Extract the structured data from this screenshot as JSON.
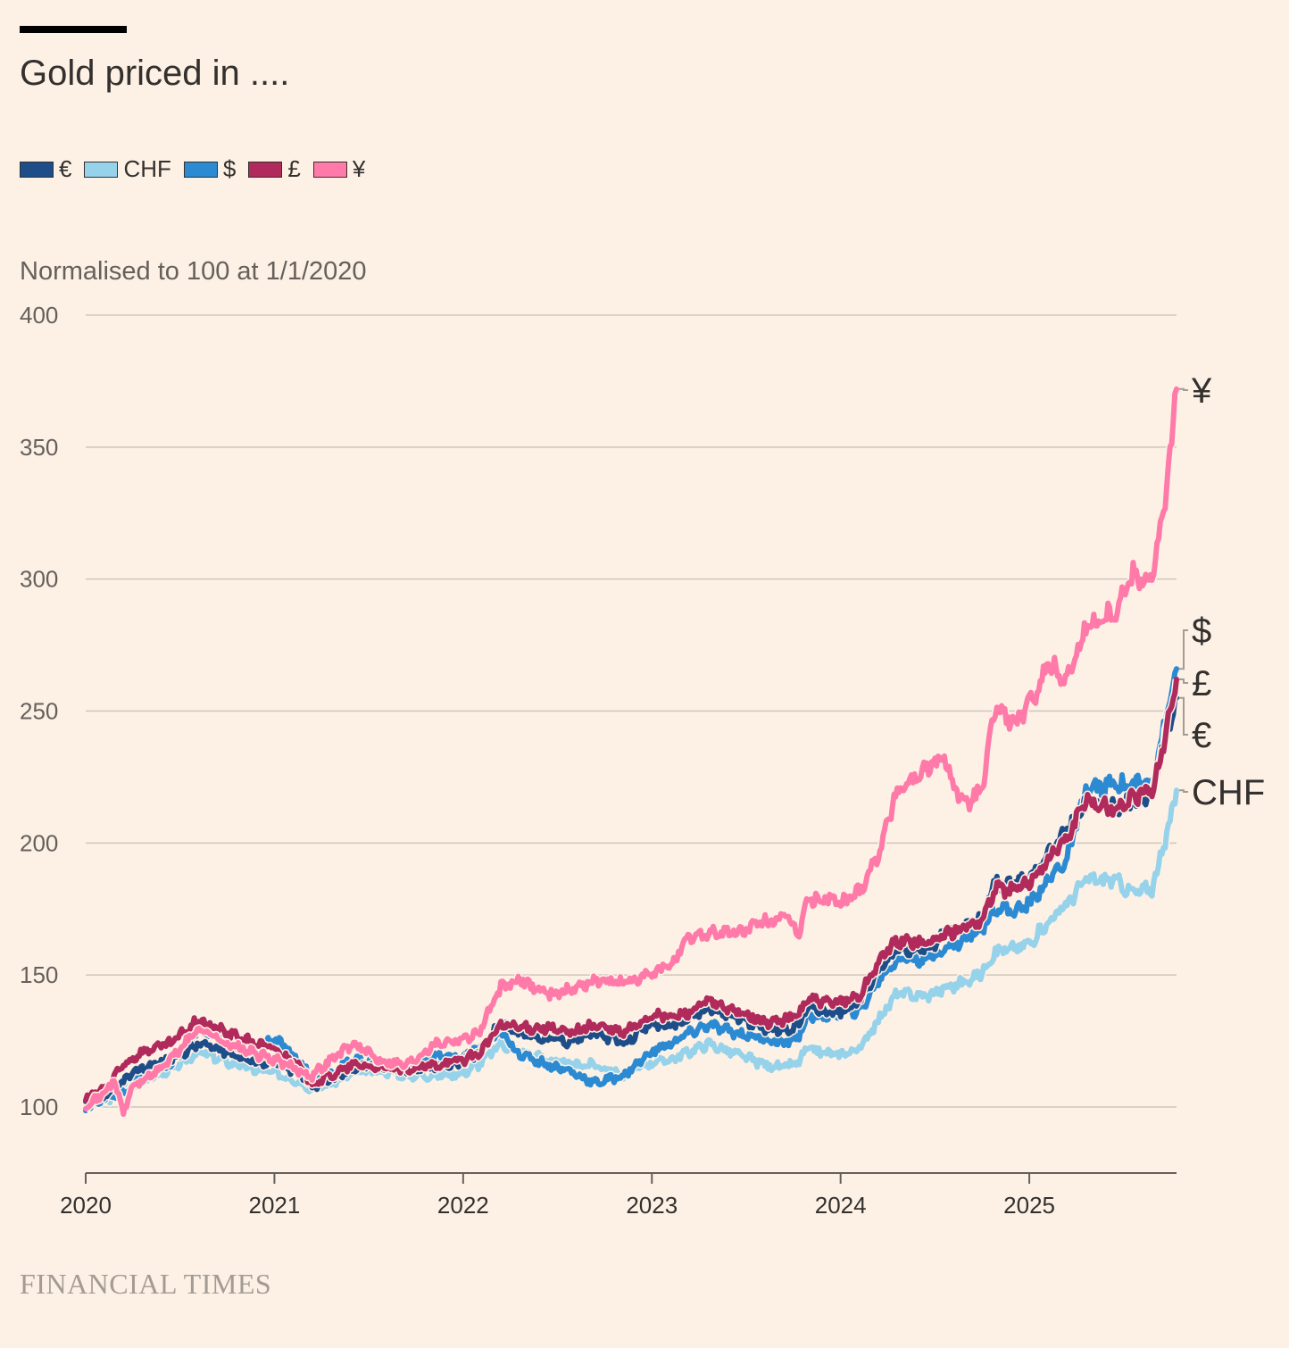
{
  "title": "Gold priced in ....",
  "subtitle": "Normalised to 100 at 1/1/2020",
  "source": "FINANCIAL TIMES",
  "legend": [
    {
      "label": "€",
      "color": "#1d4e89"
    },
    {
      "label": "CHF",
      "color": "#96d2ea"
    },
    {
      "label": "$",
      "color": "#2b8ad2"
    },
    {
      "label": "£",
      "color": "#b02a5c"
    },
    {
      "label": "¥",
      "color": "#ff7aa8"
    }
  ],
  "chart_data": {
    "type": "line",
    "ylabel": "Normalised to 100 at 1/1/2020",
    "ylim": [
      75,
      400
    ],
    "yticks": [
      100,
      150,
      200,
      250,
      300,
      350,
      400
    ],
    "xlim": [
      2020.0,
      2025.78
    ],
    "xticks": [
      2020,
      2021,
      2022,
      2023,
      2024,
      2025
    ],
    "grid": true,
    "series": [
      {
        "name": "€",
        "color": "#1d4e89",
        "end_label": "€",
        "points": [
          [
            2020.0,
            101
          ],
          [
            2020.12,
            105
          ],
          [
            2020.2,
            110
          ],
          [
            2020.3,
            115
          ],
          [
            2020.45,
            118
          ],
          [
            2020.6,
            124
          ],
          [
            2020.75,
            121
          ],
          [
            2020.9,
            117
          ],
          [
            2021.0,
            117
          ],
          [
            2021.12,
            113
          ],
          [
            2021.2,
            108
          ],
          [
            2021.3,
            110
          ],
          [
            2021.42,
            115
          ],
          [
            2021.55,
            116
          ],
          [
            2021.7,
            114
          ],
          [
            2021.85,
            115
          ],
          [
            2022.0,
            117
          ],
          [
            2022.08,
            120
          ],
          [
            2022.2,
            132
          ],
          [
            2022.3,
            128
          ],
          [
            2022.45,
            126
          ],
          [
            2022.55,
            125
          ],
          [
            2022.7,
            128
          ],
          [
            2022.85,
            124
          ],
          [
            2023.0,
            132
          ],
          [
            2023.1,
            130
          ],
          [
            2023.2,
            134
          ],
          [
            2023.3,
            137
          ],
          [
            2023.45,
            134
          ],
          [
            2023.6,
            130
          ],
          [
            2023.7,
            129
          ],
          [
            2023.78,
            131
          ],
          [
            2023.82,
            138
          ],
          [
            2023.95,
            136
          ],
          [
            2024.0,
            136
          ],
          [
            2024.1,
            140
          ],
          [
            2024.2,
            152
          ],
          [
            2024.3,
            160
          ],
          [
            2024.45,
            160
          ],
          [
            2024.55,
            165
          ],
          [
            2024.65,
            168
          ],
          [
            2024.75,
            172
          ],
          [
            2024.82,
            185
          ],
          [
            2024.92,
            184
          ],
          [
            2025.0,
            187
          ],
          [
            2025.1,
            196
          ],
          [
            2025.2,
            205
          ],
          [
            2025.3,
            216
          ],
          [
            2025.45,
            213
          ],
          [
            2025.55,
            216
          ],
          [
            2025.65,
            218
          ],
          [
            2025.72,
            240
          ],
          [
            2025.78,
            255
          ]
        ]
      },
      {
        "name": "CHF",
        "color": "#96d2ea",
        "end_label": "CHF",
        "points": [
          [
            2020.0,
            100
          ],
          [
            2020.12,
            103
          ],
          [
            2020.2,
            106
          ],
          [
            2020.3,
            110
          ],
          [
            2020.45,
            114
          ],
          [
            2020.6,
            121
          ],
          [
            2020.75,
            117
          ],
          [
            2020.9,
            114
          ],
          [
            2021.0,
            113
          ],
          [
            2021.12,
            110
          ],
          [
            2021.2,
            107
          ],
          [
            2021.3,
            109
          ],
          [
            2021.42,
            113
          ],
          [
            2021.55,
            114
          ],
          [
            2021.7,
            112
          ],
          [
            2021.85,
            112
          ],
          [
            2022.0,
            113
          ],
          [
            2022.08,
            116
          ],
          [
            2022.2,
            124
          ],
          [
            2022.3,
            121
          ],
          [
            2022.45,
            118
          ],
          [
            2022.55,
            116
          ],
          [
            2022.7,
            116
          ],
          [
            2022.85,
            112
          ],
          [
            2023.0,
            117
          ],
          [
            2023.1,
            118
          ],
          [
            2023.2,
            121
          ],
          [
            2023.3,
            124
          ],
          [
            2023.45,
            120
          ],
          [
            2023.6,
            116
          ],
          [
            2023.7,
            115
          ],
          [
            2023.78,
            117
          ],
          [
            2023.82,
            122
          ],
          [
            2023.95,
            120
          ],
          [
            2024.0,
            120
          ],
          [
            2024.1,
            122
          ],
          [
            2024.2,
            133
          ],
          [
            2024.3,
            143
          ],
          [
            2024.45,
            142
          ],
          [
            2024.55,
            145
          ],
          [
            2024.65,
            147
          ],
          [
            2024.75,
            151
          ],
          [
            2024.82,
            159
          ],
          [
            2024.92,
            160
          ],
          [
            2025.0,
            162
          ],
          [
            2025.1,
            170
          ],
          [
            2025.2,
            177
          ],
          [
            2025.3,
            186
          ],
          [
            2025.45,
            186
          ],
          [
            2025.55,
            181
          ],
          [
            2025.65,
            183
          ],
          [
            2025.72,
            200
          ],
          [
            2025.78,
            220
          ]
        ]
      },
      {
        "name": "$",
        "color": "#2b8ad2",
        "end_label": "$",
        "points": [
          [
            2020.0,
            100
          ],
          [
            2020.12,
            104
          ],
          [
            2020.2,
            106
          ],
          [
            2020.3,
            112
          ],
          [
            2020.45,
            116
          ],
          [
            2020.6,
            130
          ],
          [
            2020.75,
            124
          ],
          [
            2020.9,
            123
          ],
          [
            2021.0,
            126
          ],
          [
            2021.12,
            118
          ],
          [
            2021.2,
            112
          ],
          [
            2021.3,
            113
          ],
          [
            2021.42,
            118
          ],
          [
            2021.55,
            117
          ],
          [
            2021.7,
            116
          ],
          [
            2021.85,
            119
          ],
          [
            2022.0,
            119
          ],
          [
            2022.08,
            122
          ],
          [
            2022.2,
            128
          ],
          [
            2022.3,
            120
          ],
          [
            2022.45,
            116
          ],
          [
            2022.55,
            114
          ],
          [
            2022.7,
            109
          ],
          [
            2022.85,
            112
          ],
          [
            2023.0,
            121
          ],
          [
            2023.1,
            124
          ],
          [
            2023.2,
            128
          ],
          [
            2023.3,
            131
          ],
          [
            2023.45,
            128
          ],
          [
            2023.6,
            126
          ],
          [
            2023.7,
            124
          ],
          [
            2023.78,
            127
          ],
          [
            2023.82,
            134
          ],
          [
            2023.95,
            135
          ],
          [
            2024.0,
            136
          ],
          [
            2024.1,
            136
          ],
          [
            2024.2,
            148
          ],
          [
            2024.3,
            156
          ],
          [
            2024.45,
            156
          ],
          [
            2024.55,
            160
          ],
          [
            2024.65,
            163
          ],
          [
            2024.75,
            168
          ],
          [
            2024.82,
            176
          ],
          [
            2024.92,
            174
          ],
          [
            2025.0,
            177
          ],
          [
            2025.1,
            186
          ],
          [
            2025.2,
            194
          ],
          [
            2025.3,
            220
          ],
          [
            2025.45,
            222
          ],
          [
            2025.55,
            222
          ],
          [
            2025.65,
            224
          ],
          [
            2025.72,
            245
          ],
          [
            2025.78,
            266
          ]
        ]
      },
      {
        "name": "£",
        "color": "#b02a5c",
        "end_label": "£",
        "points": [
          [
            2020.0,
            103
          ],
          [
            2020.12,
            108
          ],
          [
            2020.2,
            116
          ],
          [
            2020.3,
            121
          ],
          [
            2020.45,
            124
          ],
          [
            2020.6,
            133
          ],
          [
            2020.75,
            128
          ],
          [
            2020.9,
            124
          ],
          [
            2021.0,
            122
          ],
          [
            2021.12,
            116
          ],
          [
            2021.2,
            109
          ],
          [
            2021.3,
            112
          ],
          [
            2021.42,
            116
          ],
          [
            2021.55,
            115
          ],
          [
            2021.7,
            114
          ],
          [
            2021.85,
            116
          ],
          [
            2022.0,
            118
          ],
          [
            2022.08,
            120
          ],
          [
            2022.2,
            131
          ],
          [
            2022.3,
            130
          ],
          [
            2022.45,
            130
          ],
          [
            2022.55,
            128
          ],
          [
            2022.7,
            131
          ],
          [
            2022.85,
            128
          ],
          [
            2023.0,
            135
          ],
          [
            2023.1,
            134
          ],
          [
            2023.2,
            136
          ],
          [
            2023.3,
            140
          ],
          [
            2023.45,
            136
          ],
          [
            2023.6,
            132
          ],
          [
            2023.7,
            133
          ],
          [
            2023.78,
            135
          ],
          [
            2023.82,
            141
          ],
          [
            2023.95,
            139
          ],
          [
            2024.0,
            140
          ],
          [
            2024.1,
            142
          ],
          [
            2024.2,
            155
          ],
          [
            2024.3,
            163
          ],
          [
            2024.45,
            162
          ],
          [
            2024.55,
            165
          ],
          [
            2024.65,
            168
          ],
          [
            2024.75,
            171
          ],
          [
            2024.82,
            183
          ],
          [
            2024.92,
            182
          ],
          [
            2025.0,
            185
          ],
          [
            2025.1,
            194
          ],
          [
            2025.2,
            202
          ],
          [
            2025.3,
            216
          ],
          [
            2025.45,
            213
          ],
          [
            2025.55,
            217
          ],
          [
            2025.65,
            220
          ],
          [
            2025.72,
            240
          ],
          [
            2025.78,
            262
          ]
        ]
      },
      {
        "name": "¥",
        "color": "#ff7aa8",
        "end_label": "¥",
        "points": [
          [
            2020.0,
            101
          ],
          [
            2020.08,
            104
          ],
          [
            2020.15,
            110
          ],
          [
            2020.2,
            98
          ],
          [
            2020.25,
            108
          ],
          [
            2020.35,
            112
          ],
          [
            2020.45,
            118
          ],
          [
            2020.6,
            130
          ],
          [
            2020.75,
            124
          ],
          [
            2020.9,
            120
          ],
          [
            2021.0,
            118
          ],
          [
            2021.12,
            114
          ],
          [
            2021.2,
            112
          ],
          [
            2021.3,
            118
          ],
          [
            2021.42,
            124
          ],
          [
            2021.55,
            118
          ],
          [
            2021.7,
            116
          ],
          [
            2021.85,
            124
          ],
          [
            2022.0,
            126
          ],
          [
            2022.08,
            128
          ],
          [
            2022.2,
            145
          ],
          [
            2022.3,
            148
          ],
          [
            2022.45,
            143
          ],
          [
            2022.55,
            144
          ],
          [
            2022.7,
            148
          ],
          [
            2022.85,
            147
          ],
          [
            2023.0,
            150
          ],
          [
            2023.1,
            154
          ],
          [
            2023.2,
            164
          ],
          [
            2023.3,
            166
          ],
          [
            2023.45,
            166
          ],
          [
            2023.6,
            170
          ],
          [
            2023.7,
            172
          ],
          [
            2023.78,
            166
          ],
          [
            2023.82,
            178
          ],
          [
            2023.95,
            179
          ],
          [
            2024.0,
            177
          ],
          [
            2024.1,
            182
          ],
          [
            2024.2,
            196
          ],
          [
            2024.3,
            220
          ],
          [
            2024.45,
            228
          ],
          [
            2024.55,
            232
          ],
          [
            2024.65,
            214
          ],
          [
            2024.75,
            220
          ],
          [
            2024.82,
            252
          ],
          [
            2024.92,
            245
          ],
          [
            2025.0,
            252
          ],
          [
            2025.1,
            268
          ],
          [
            2025.2,
            262
          ],
          [
            2025.3,
            282
          ],
          [
            2025.45,
            288
          ],
          [
            2025.55,
            302
          ],
          [
            2025.65,
            300
          ],
          [
            2025.72,
            330
          ],
          [
            2025.78,
            372
          ]
        ]
      }
    ]
  }
}
